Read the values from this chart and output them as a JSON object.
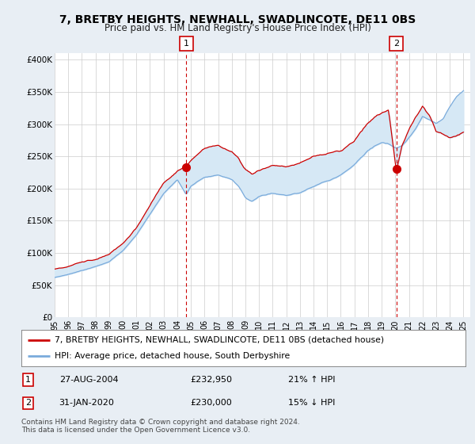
{
  "title": "7, BRETBY HEIGHTS, NEWHALL, SWADLINCOTE, DE11 0BS",
  "subtitle": "Price paid vs. HM Land Registry's House Price Index (HPI)",
  "ylabel_ticks": [
    "£0",
    "£50K",
    "£100K",
    "£150K",
    "£200K",
    "£250K",
    "£300K",
    "£350K",
    "£400K"
  ],
  "ytick_vals": [
    0,
    50000,
    100000,
    150000,
    200000,
    250000,
    300000,
    350000,
    400000
  ],
  "ylim": [
    0,
    410000
  ],
  "xlim_start": 1995.0,
  "xlim_end": 2025.5,
  "red_line_color": "#cc0000",
  "blue_line_color": "#7aabdc",
  "fill_color": "#d6e8f5",
  "dashed_line_color": "#cc0000",
  "marker1_x": 2004.65,
  "marker1_y": 232950,
  "marker2_x": 2020.08,
  "marker2_y": 230000,
  "legend_red": "7, BRETBY HEIGHTS, NEWHALL, SWADLINCOTE, DE11 0BS (detached house)",
  "legend_blue": "HPI: Average price, detached house, South Derbyshire",
  "ann1_date": "27-AUG-2004",
  "ann1_price": "£232,950",
  "ann1_hpi": "21% ↑ HPI",
  "ann2_date": "31-JAN-2020",
  "ann2_price": "£230,000",
  "ann2_hpi": "15% ↓ HPI",
  "footer": "Contains HM Land Registry data © Crown copyright and database right 2024.\nThis data is licensed under the Open Government Licence v3.0.",
  "bg_color": "#e8eef4",
  "plot_bg_color": "#ffffff",
  "title_fontsize": 10,
  "subtitle_fontsize": 8.5
}
